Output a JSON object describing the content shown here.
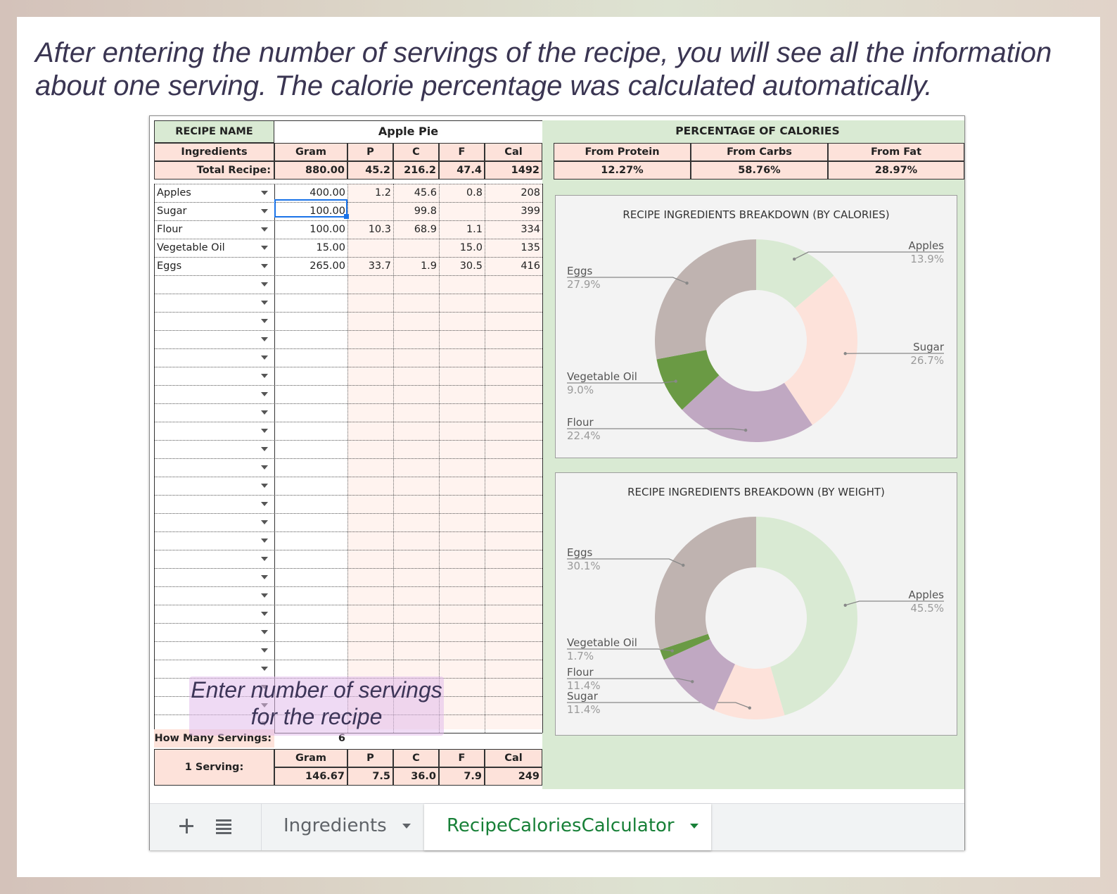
{
  "caption": "After entering the number of servings of the recipe, you will see all the information about one serving. The calorie percentage was calculated automatically.",
  "recipe": {
    "name_label": "RECIPE NAME",
    "name": "Apple Pie",
    "columns": [
      "Ingredients",
      "Gram",
      "P",
      "C",
      "F",
      "Cal"
    ],
    "total_label": "Total Recipe:",
    "totals": {
      "gram": "880.00",
      "p": "45.2",
      "c": "216.2",
      "f": "47.4",
      "cal": "1492"
    },
    "ingredients": [
      {
        "name": "Apples",
        "gram": "400.00",
        "p": "1.2",
        "c": "45.6",
        "f": "0.8",
        "cal": "208"
      },
      {
        "name": "Sugar",
        "gram": "100.00",
        "p": "",
        "c": "99.8",
        "f": "",
        "cal": "399"
      },
      {
        "name": "Flour",
        "gram": "100.00",
        "p": "10.3",
        "c": "68.9",
        "f": "1.1",
        "cal": "334"
      },
      {
        "name": "Vegetable Oil",
        "gram": "15.00",
        "p": "",
        "c": "",
        "f": "15.0",
        "cal": "135"
      },
      {
        "name": "Eggs",
        "gram": "265.00",
        "p": "33.7",
        "c": "1.9",
        "f": "30.5",
        "cal": "416"
      }
    ],
    "servings_label": "How Many Servings:",
    "servings": "6",
    "serving_label": "1 Serving:",
    "serving_columns": [
      "Gram",
      "P",
      "C",
      "F",
      "Cal"
    ],
    "serving": {
      "gram": "146.67",
      "p": "7.5",
      "c": "36.0",
      "f": "7.9",
      "cal": "249"
    }
  },
  "percentages": {
    "title": "PERCENTAGE OF CALORIES",
    "items": [
      {
        "label": "From Protein",
        "value": "12.27%"
      },
      {
        "label": "From Carbs",
        "value": "58.76%"
      },
      {
        "label": "From Fat",
        "value": "28.97%"
      }
    ]
  },
  "overlay_note": [
    "Enter number of servings",
    "for the recipe"
  ],
  "tabs": {
    "add_icon": "plus-icon",
    "list_icon": "list-icon",
    "items": [
      {
        "label": "Ingredients",
        "active": false
      },
      {
        "label": "RecipeCaloriesCalculator",
        "active": true
      }
    ],
    "active_color": "#188038"
  },
  "chart_data": [
    {
      "type": "pie",
      "title": "RECIPE INGREDIENTS BREAKDOWN (BY CALORIES)",
      "categories": [
        "Apples",
        "Sugar",
        "Flour",
        "Vegetable Oil",
        "Eggs"
      ],
      "values": [
        13.9,
        26.7,
        22.4,
        9.0,
        27.9
      ],
      "labels": [
        "13.9%",
        "26.7%",
        "22.4%",
        "9.0%",
        "27.9%"
      ],
      "colors": [
        "#d9ead3",
        "#fde2da",
        "#c0a8c2",
        "#6a9a44",
        "#bfb3b0"
      ],
      "donut": true
    },
    {
      "type": "pie",
      "title": "RECIPE INGREDIENTS BREAKDOWN (BY WEIGHT)",
      "categories": [
        "Apples",
        "Sugar",
        "Flour",
        "Vegetable Oil",
        "Eggs"
      ],
      "values": [
        45.5,
        11.4,
        11.4,
        1.7,
        30.1
      ],
      "labels": [
        "45.5%",
        "11.4%",
        "11.4%",
        "1.7%",
        "30.1%"
      ],
      "colors": [
        "#d9ead3",
        "#fde2da",
        "#c0a8c2",
        "#6a9a44",
        "#bfb3b0"
      ],
      "donut": true
    }
  ]
}
